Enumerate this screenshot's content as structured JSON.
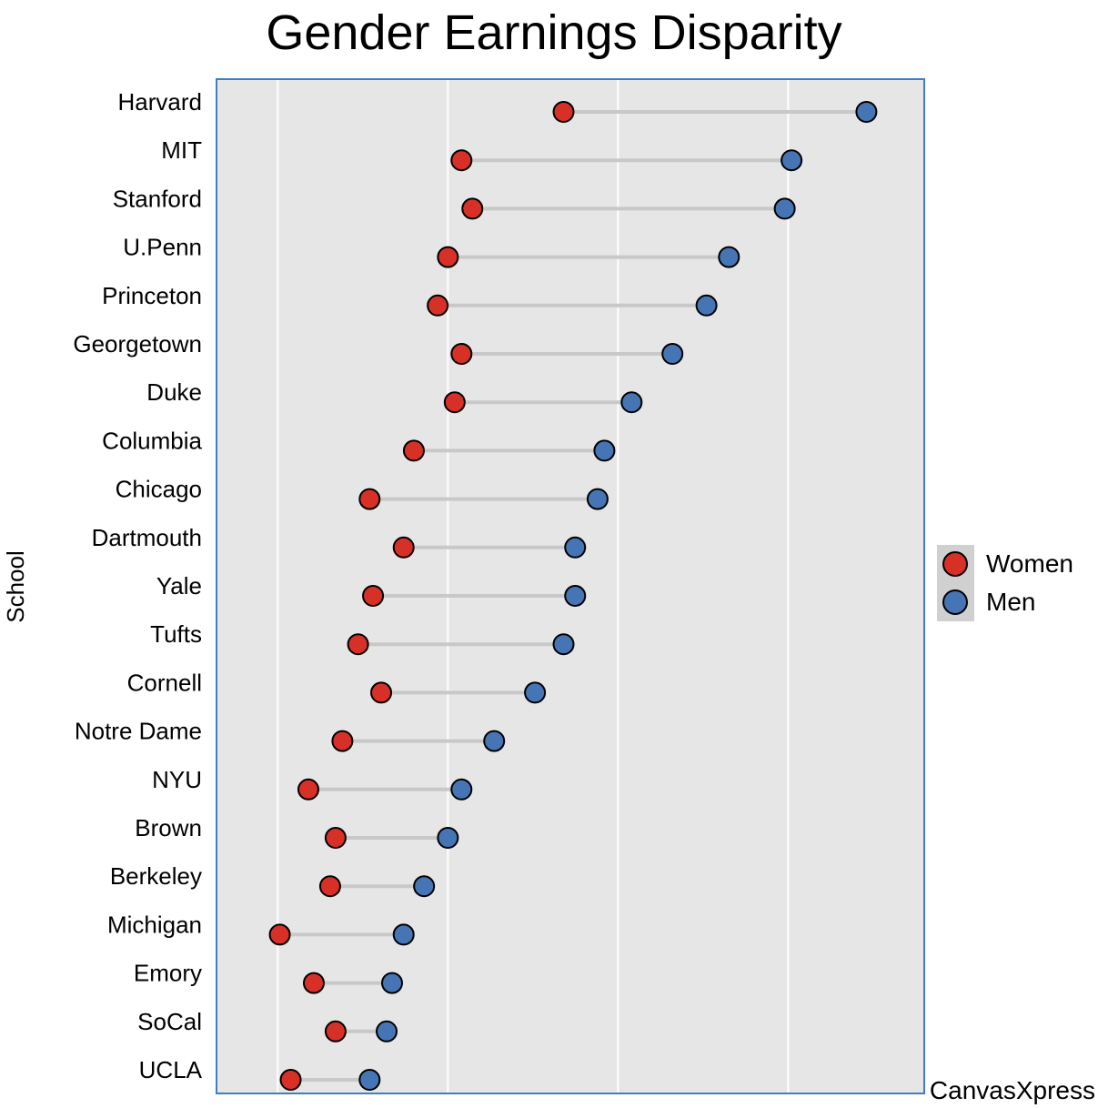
{
  "chart_data": {
    "type": "dumbbell",
    "title": "Gender Earnings Disparity",
    "ylabel": "School",
    "xlabel": "",
    "xlim": [
      66,
      170
    ],
    "grid": true,
    "legend_position": "right",
    "categories": [
      "Harvard",
      "MIT",
      "Stanford",
      "U.Penn",
      "Princeton",
      "Georgetown",
      "Duke",
      "Columbia",
      "Chicago",
      "Dartmouth",
      "Yale",
      "Tufts",
      "Cornell",
      "Notre Dame",
      "NYU",
      "Brown",
      "Berkeley",
      "Michigan",
      "Emory",
      "SoCal",
      "UCLA"
    ],
    "series": [
      {
        "name": "Women",
        "color": "#d73027",
        "values": [
          117,
          102,
          103.6,
          100,
          98.5,
          102,
          101,
          95,
          88.5,
          93.5,
          89,
          86.8,
          90.2,
          84.5,
          79.5,
          83.5,
          82.7,
          75.3,
          80.3,
          83.5,
          76.9
        ]
      },
      {
        "name": "Men",
        "color": "#4575b4",
        "values": [
          161.5,
          150.5,
          149.5,
          141.3,
          138,
          133,
          127,
          123,
          122,
          118.7,
          118.7,
          117,
          112.8,
          106.8,
          102,
          100,
          96.5,
          93.5,
          91.8,
          91,
          88.5
        ]
      }
    ]
  },
  "brand": "CanvasXpress"
}
